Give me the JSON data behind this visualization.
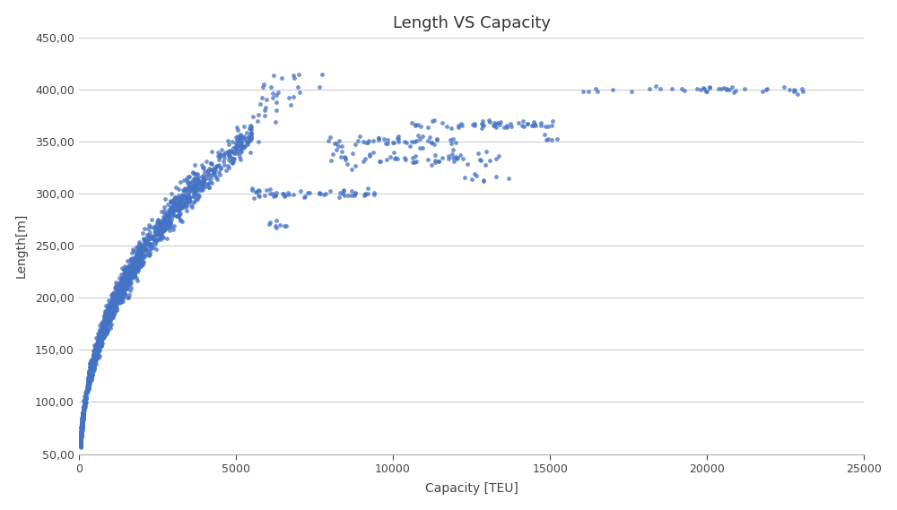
{
  "title": "Length VS Capacity",
  "xlabel": "Capacity [TEU]",
  "ylabel": "Length[m]",
  "xlim": [
    0,
    25000
  ],
  "ylim": [
    50,
    450
  ],
  "xticks": [
    0,
    5000,
    10000,
    15000,
    20000,
    25000
  ],
  "yticks": [
    50,
    100,
    150,
    200,
    250,
    300,
    350,
    400,
    450
  ],
  "dot_color": "#4472C4",
  "dot_size": 12,
  "background_color": "#FFFFFF",
  "plot_bg_color": "#FFFFFF",
  "grid_color": "#C8C8C8",
  "title_fontsize": 13,
  "axis_label_fontsize": 10
}
